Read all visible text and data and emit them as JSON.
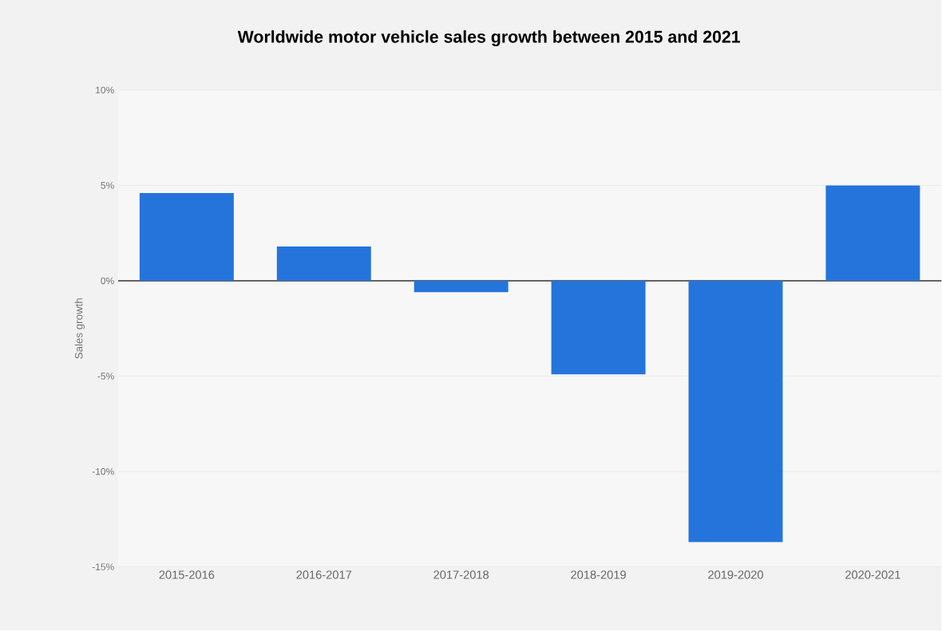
{
  "chart_data": {
    "type": "bar",
    "title": "**Worldwide motor vehicle sales growth between 2015 and 2021**",
    "ylabel": "Sales growth",
    "categories": [
      "2015-2016",
      "2016-2017",
      "2017-2018",
      "2018-2019",
      "2019-2020",
      "2020-2021"
    ],
    "values": [
      4.6,
      1.8,
      -0.6,
      -4.9,
      -13.7,
      5.0
    ],
    "color": "#2474dc",
    "ylim": [
      -15,
      10
    ],
    "yticks": [
      {
        "value": 10,
        "label": "10%"
      },
      {
        "value": 5,
        "label": "5%"
      },
      {
        "value": 0,
        "label": "0%"
      },
      {
        "value": -5,
        "label": "-5%"
      },
      {
        "value": -10,
        "label": "-10%"
      },
      {
        "value": -15,
        "label": "-15%"
      }
    ],
    "grid": "y"
  }
}
